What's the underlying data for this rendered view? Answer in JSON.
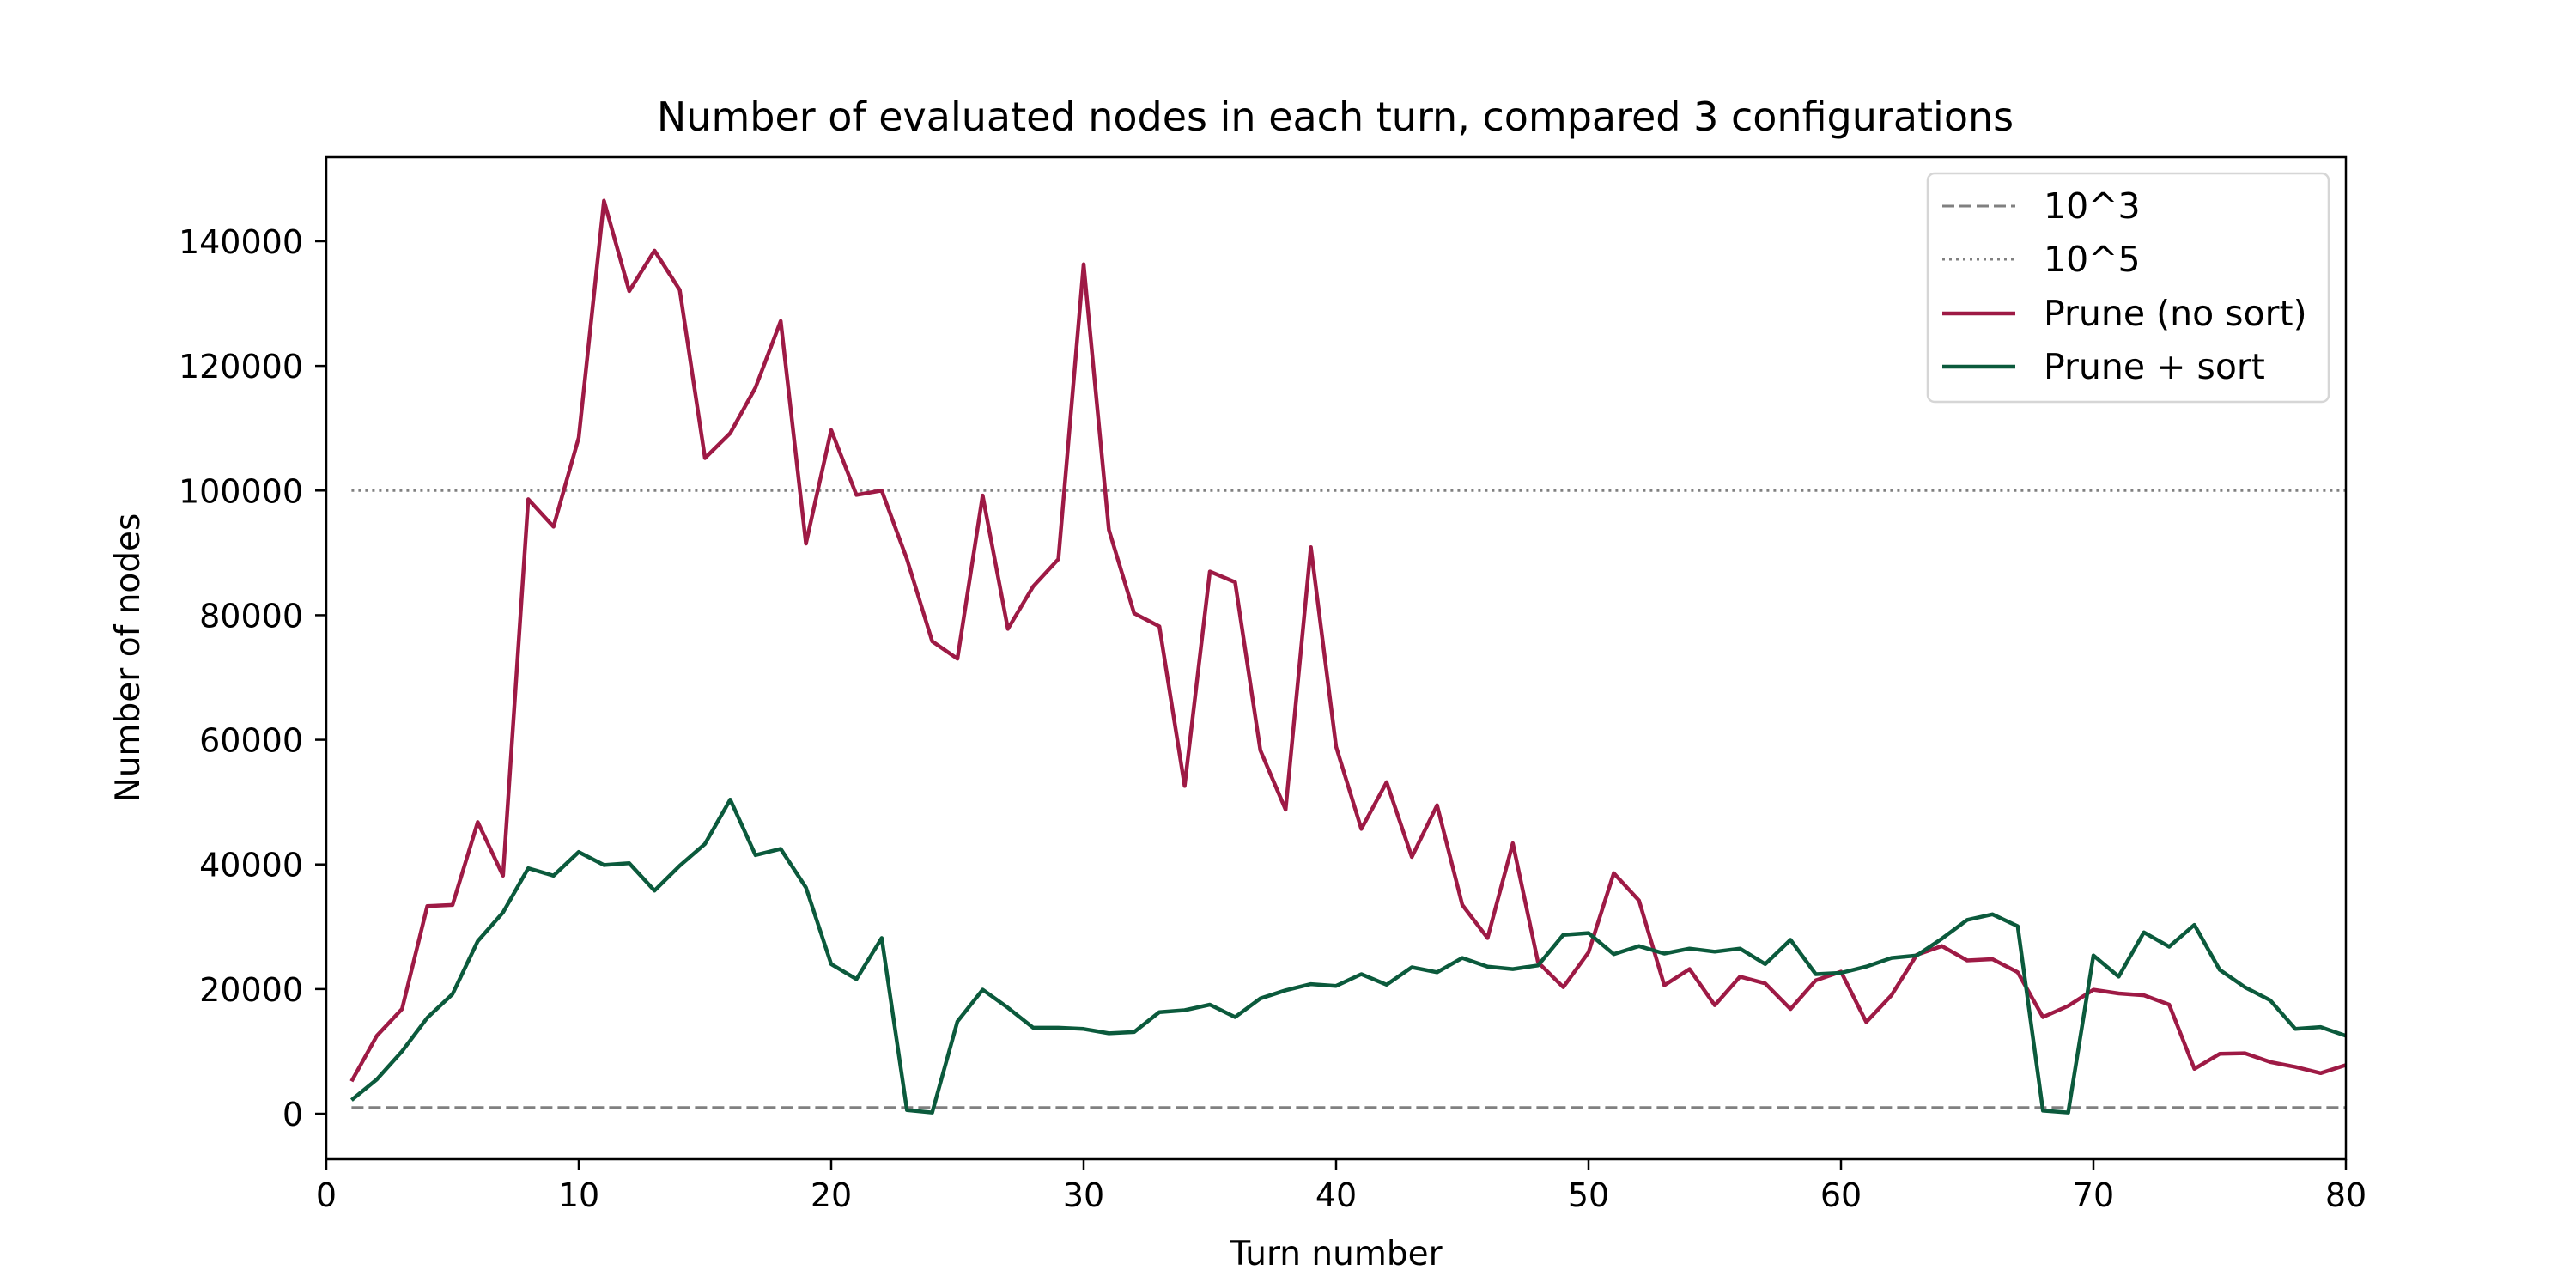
{
  "chart_data": {
    "type": "line",
    "title": "Number of evaluated nodes in each turn, compared 3 configurations",
    "xlabel": "Turn number",
    "ylabel": "Number of nodes",
    "xlim": [
      0,
      80
    ],
    "ylim": [
      -7300,
      153500
    ],
    "xticks": [
      0,
      10,
      20,
      30,
      40,
      50,
      60,
      70,
      80
    ],
    "yticks": [
      0,
      20000,
      40000,
      60000,
      80000,
      100000,
      120000,
      140000
    ],
    "grid": false,
    "legend_position": "top-right",
    "x": [
      1,
      2,
      3,
      4,
      5,
      6,
      7,
      8,
      9,
      10,
      11,
      12,
      13,
      14,
      15,
      16,
      17,
      18,
      19,
      20,
      21,
      22,
      23,
      24,
      25,
      26,
      27,
      28,
      29,
      30,
      31,
      32,
      33,
      34,
      35,
      36,
      37,
      38,
      39,
      40,
      41,
      42,
      43,
      44,
      45,
      46,
      47,
      48,
      49,
      50,
      51,
      52,
      53,
      54,
      55,
      56,
      57,
      58,
      59,
      60,
      61,
      62,
      63,
      64,
      65,
      66,
      67,
      68,
      69,
      70,
      71,
      72,
      73,
      74,
      75,
      76,
      77,
      78,
      79,
      80
    ],
    "series": [
      {
        "name": "10^3",
        "color": "#808080",
        "linestyle": "dashed",
        "values": [
          1000,
          1000,
          1000,
          1000,
          1000,
          1000,
          1000,
          1000,
          1000,
          1000,
          1000,
          1000,
          1000,
          1000,
          1000,
          1000,
          1000,
          1000,
          1000,
          1000,
          1000,
          1000,
          1000,
          1000,
          1000,
          1000,
          1000,
          1000,
          1000,
          1000,
          1000,
          1000,
          1000,
          1000,
          1000,
          1000,
          1000,
          1000,
          1000,
          1000,
          1000,
          1000,
          1000,
          1000,
          1000,
          1000,
          1000,
          1000,
          1000,
          1000,
          1000,
          1000,
          1000,
          1000,
          1000,
          1000,
          1000,
          1000,
          1000,
          1000,
          1000,
          1000,
          1000,
          1000,
          1000,
          1000,
          1000,
          1000,
          1000,
          1000,
          1000,
          1000,
          1000,
          1000,
          1000,
          1000,
          1000,
          1000,
          1000,
          1000
        ]
      },
      {
        "name": "10^5",
        "color": "#808080",
        "linestyle": "dotted",
        "values": [
          100000,
          100000,
          100000,
          100000,
          100000,
          100000,
          100000,
          100000,
          100000,
          100000,
          100000,
          100000,
          100000,
          100000,
          100000,
          100000,
          100000,
          100000,
          100000,
          100000,
          100000,
          100000,
          100000,
          100000,
          100000,
          100000,
          100000,
          100000,
          100000,
          100000,
          100000,
          100000,
          100000,
          100000,
          100000,
          100000,
          100000,
          100000,
          100000,
          100000,
          100000,
          100000,
          100000,
          100000,
          100000,
          100000,
          100000,
          100000,
          100000,
          100000,
          100000,
          100000,
          100000,
          100000,
          100000,
          100000,
          100000,
          100000,
          100000,
          100000,
          100000,
          100000,
          100000,
          100000,
          100000,
          100000,
          100000,
          100000,
          100000,
          100000,
          100000,
          100000,
          100000,
          100000,
          100000,
          100000,
          100000,
          100000,
          100000,
          100000
        ]
      },
      {
        "name": "Prune (no sort)",
        "color": "#9e1a45",
        "linestyle": "solid",
        "values": [
          5200,
          12500,
          16800,
          33300,
          33500,
          46800,
          38200,
          98600,
          94200,
          108500,
          146500,
          132000,
          138500,
          132200,
          105200,
          109200,
          116500,
          127200,
          91500,
          109700,
          99300,
          100000,
          89000,
          75800,
          73000,
          99200,
          77800,
          84600,
          89000,
          136300,
          93700,
          80300,
          78200,
          52600,
          87000,
          85300,
          58300,
          48800,
          90900,
          58900,
          45700,
          53200,
          41200,
          49500,
          33500,
          28200,
          43400,
          24300,
          20300,
          25900,
          38600,
          34200,
          20600,
          23200,
          17400,
          22000,
          20900,
          16800,
          21400,
          22800,
          14700,
          19000,
          25500,
          26900,
          24600,
          24800,
          22700,
          15500,
          17300,
          19900,
          19300,
          19000,
          17500,
          7200,
          9600,
          9700,
          8300,
          7500,
          6500,
          7800
        ]
      },
      {
        "name": "Prune + sort",
        "color": "#0b5a3c",
        "linestyle": "solid",
        "values": [
          2200,
          5500,
          10000,
          15400,
          19200,
          27700,
          32300,
          39400,
          38200,
          42000,
          39900,
          40200,
          35800,
          39800,
          43300,
          50400,
          41500,
          42500,
          36300,
          24000,
          21600,
          28200,
          600,
          200,
          14800,
          19900,
          17000,
          13800,
          13800,
          13600,
          12900,
          13100,
          16300,
          16600,
          17500,
          15500,
          18500,
          19800,
          20800,
          20500,
          22400,
          20700,
          23500,
          22700,
          25000,
          23600,
          23200,
          23800,
          28700,
          29000,
          25600,
          26900,
          25700,
          26500,
          26000,
          26500,
          24000,
          27900,
          22400,
          22600,
          23600,
          25000,
          25400,
          28100,
          31100,
          32000,
          30100,
          500,
          200,
          25400,
          22000,
          29100,
          26800,
          30300,
          23100,
          20300,
          18200,
          13600,
          13900,
          12500
        ]
      }
    ]
  }
}
